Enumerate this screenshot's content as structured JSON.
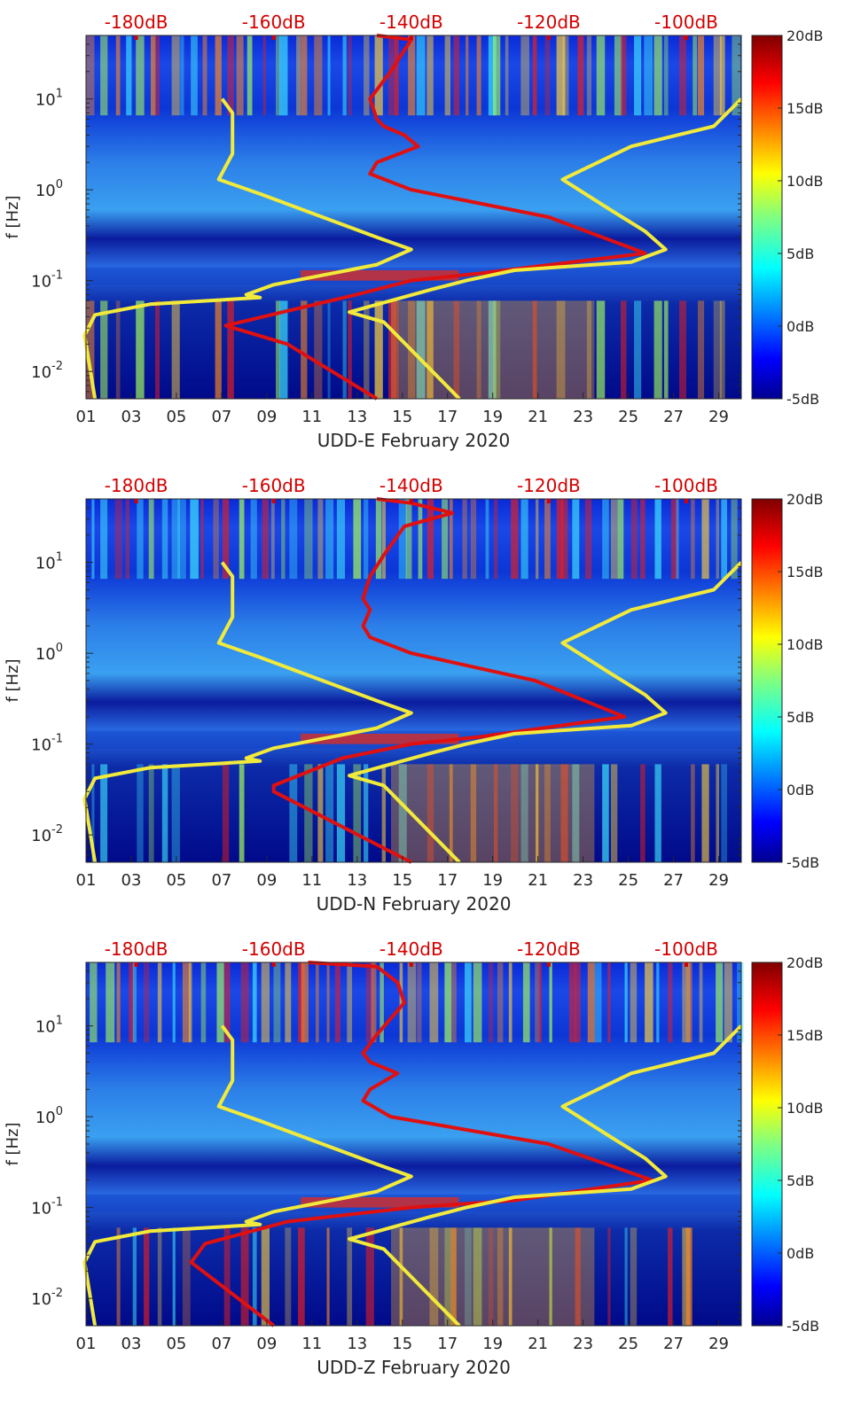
{
  "figure": {
    "description_label": "Spectrogram panels for station UDD, three components"
  },
  "chart_data": [
    {
      "type": "heatmap",
      "title": "UDD-E February 2020",
      "xlabel": "UDD-E February 2020",
      "ylabel": "f [Hz]",
      "x_ticks": [
        "01",
        "03",
        "05",
        "07",
        "09",
        "11",
        "13",
        "15",
        "17",
        "19",
        "21",
        "23",
        "25",
        "27",
        "29"
      ],
      "x_range": [
        1,
        30
      ],
      "y_ticks": [
        {
          "value": 0.01,
          "label": "10",
          "exp": "-2"
        },
        {
          "value": 0.1,
          "label": "10",
          "exp": "-1"
        },
        {
          "value": 1,
          "label": "10",
          "exp": "0"
        },
        {
          "value": 10,
          "label": "10",
          "exp": "1"
        }
      ],
      "y_range": [
        0.005,
        50
      ],
      "y_scale": "log",
      "top_axis_labels": [
        "-180dB",
        "-160dB",
        "-140dB",
        "-120dB",
        "-100dB"
      ],
      "top_axis_values": [
        -180,
        -160,
        -140,
        -120,
        -100
      ],
      "top_axis_range": [
        -187.3,
        -92.0
      ],
      "colorbar": {
        "labels": [
          "20dB",
          "15dB",
          "10dB",
          "5dB",
          "0dB",
          "-5dB"
        ],
        "range": [
          -5,
          20
        ]
      },
      "series": [
        {
          "name": "psd_curve",
          "color": "#e01010",
          "points": [
            [
              -145,
              50
            ],
            [
              -140,
              45
            ],
            [
              -143,
              20
            ],
            [
              -146,
              10
            ],
            [
              -145,
              6
            ],
            [
              -144,
              5
            ],
            [
              -141,
              4
            ],
            [
              -139,
              3
            ],
            [
              -145,
              2
            ],
            [
              -146,
              1.5
            ],
            [
              -140,
              1
            ],
            [
              -120,
              0.5
            ],
            [
              -106,
              0.2
            ],
            [
              -130,
              0.12
            ],
            [
              -140,
              0.1
            ],
            [
              -148,
              0.07
            ],
            [
              -167,
              0.032
            ],
            [
              -158,
              0.02
            ],
            [
              -145,
              0.005
            ]
          ]
        },
        {
          "name": "noise_model_low",
          "color": "#f2ea3a",
          "points": [
            [
              -167.5,
              10
            ],
            [
              -166,
              7
            ],
            [
              -166,
              2.5
            ],
            [
              -168,
              1.3
            ],
            [
              -162,
              0.9
            ],
            [
              -145,
              0.3
            ],
            [
              -140,
              0.22
            ],
            [
              -145,
              0.15
            ],
            [
              -160,
              0.09
            ],
            [
              -164,
              0.07
            ],
            [
              -162,
              0.065
            ],
            [
              -178,
              0.055
            ],
            [
              -186,
              0.042
            ],
            [
              -187.5,
              0.025
            ],
            [
              -186,
              0.005
            ]
          ]
        },
        {
          "name": "noise_model_high",
          "color": "#f2ea3a",
          "points": [
            [
              -92,
              10
            ],
            [
              -96,
              5
            ],
            [
              -108,
              3
            ],
            [
              -118,
              1.3
            ],
            [
              -111,
              0.6
            ],
            [
              -106,
              0.35
            ],
            [
              -103,
              0.22
            ],
            [
              -108,
              0.16
            ],
            [
              -125,
              0.13
            ],
            [
              -132,
              0.1
            ],
            [
              -137,
              0.08
            ],
            [
              -149,
              0.045
            ],
            [
              -144,
              0.035
            ],
            [
              -133,
              0.005
            ]
          ]
        }
      ]
    },
    {
      "type": "heatmap",
      "title": "UDD-N February 2020",
      "xlabel": "UDD-N February 2020",
      "ylabel": "f [Hz]",
      "x_ticks": [
        "01",
        "03",
        "05",
        "07",
        "09",
        "11",
        "13",
        "15",
        "17",
        "19",
        "21",
        "23",
        "25",
        "27",
        "29"
      ],
      "x_range": [
        1,
        30
      ],
      "y_ticks": [
        {
          "value": 0.01,
          "label": "10",
          "exp": "-2"
        },
        {
          "value": 0.1,
          "label": "10",
          "exp": "-1"
        },
        {
          "value": 1,
          "label": "10",
          "exp": "0"
        },
        {
          "value": 10,
          "label": "10",
          "exp": "1"
        }
      ],
      "y_range": [
        0.005,
        50
      ],
      "y_scale": "log",
      "top_axis_labels": [
        "-180dB",
        "-160dB",
        "-140dB",
        "-120dB",
        "-100dB"
      ],
      "top_axis_values": [
        -180,
        -160,
        -140,
        -120,
        -100
      ],
      "top_axis_range": [
        -187.3,
        -92.0
      ],
      "colorbar": {
        "labels": [
          "20dB",
          "15dB",
          "10dB",
          "5dB",
          "0dB",
          "-5dB"
        ],
        "range": [
          -5,
          20
        ]
      },
      "series": [
        {
          "name": "psd_curve",
          "color": "#e01010",
          "points": [
            [
              -145,
              50
            ],
            [
              -140,
              45
            ],
            [
              -134,
              35
            ],
            [
              -141,
              25
            ],
            [
              -144,
              12
            ],
            [
              -146,
              7
            ],
            [
              -147,
              4
            ],
            [
              -146,
              3
            ],
            [
              -147,
              2
            ],
            [
              -146,
              1.5
            ],
            [
              -140,
              1
            ],
            [
              -122,
              0.5
            ],
            [
              -109,
              0.2
            ],
            [
              -130,
              0.12
            ],
            [
              -140,
              0.1
            ],
            [
              -150,
              0.07
            ],
            [
              -160,
              0.035
            ],
            [
              -160,
              0.03
            ],
            [
              -140,
              0.005
            ]
          ]
        },
        {
          "name": "noise_model_low",
          "color": "#f2ea3a",
          "points": [
            [
              -167.5,
              10
            ],
            [
              -166,
              7
            ],
            [
              -166,
              2.5
            ],
            [
              -168,
              1.3
            ],
            [
              -162,
              0.9
            ],
            [
              -145,
              0.3
            ],
            [
              -140,
              0.22
            ],
            [
              -145,
              0.15
            ],
            [
              -160,
              0.09
            ],
            [
              -164,
              0.07
            ],
            [
              -162,
              0.065
            ],
            [
              -178,
              0.055
            ],
            [
              -186,
              0.042
            ],
            [
              -187.5,
              0.025
            ],
            [
              -186,
              0.005
            ]
          ]
        },
        {
          "name": "noise_model_high",
          "color": "#f2ea3a",
          "points": [
            [
              -92,
              10
            ],
            [
              -96,
              5
            ],
            [
              -108,
              3
            ],
            [
              -118,
              1.3
            ],
            [
              -111,
              0.6
            ],
            [
              -106,
              0.35
            ],
            [
              -103,
              0.22
            ],
            [
              -108,
              0.16
            ],
            [
              -125,
              0.13
            ],
            [
              -132,
              0.1
            ],
            [
              -137,
              0.08
            ],
            [
              -149,
              0.045
            ],
            [
              -144,
              0.035
            ],
            [
              -133,
              0.005
            ]
          ]
        }
      ]
    },
    {
      "type": "heatmap",
      "title": "UDD-Z February 2020",
      "xlabel": "UDD-Z February 2020",
      "ylabel": "f [Hz]",
      "x_ticks": [
        "01",
        "03",
        "05",
        "07",
        "09",
        "11",
        "13",
        "15",
        "17",
        "19",
        "21",
        "23",
        "25",
        "27",
        "29"
      ],
      "x_range": [
        1,
        30
      ],
      "y_ticks": [
        {
          "value": 0.01,
          "label": "10",
          "exp": "-2"
        },
        {
          "value": 0.1,
          "label": "10",
          "exp": "-1"
        },
        {
          "value": 1,
          "label": "10",
          "exp": "0"
        },
        {
          "value": 10,
          "label": "10",
          "exp": "1"
        }
      ],
      "y_range": [
        0.005,
        50
      ],
      "y_scale": "log",
      "top_axis_labels": [
        "-180dB",
        "-160dB",
        "-140dB",
        "-120dB",
        "-100dB"
      ],
      "top_axis_values": [
        -180,
        -160,
        -140,
        -120,
        -100
      ],
      "top_axis_range": [
        -187.3,
        -92.0
      ],
      "colorbar": {
        "labels": [
          "20dB",
          "15dB",
          "10dB",
          "5dB",
          "0dB",
          "-5dB"
        ],
        "range": [
          -5,
          20
        ]
      },
      "series": [
        {
          "name": "psd_curve",
          "color": "#e01010",
          "points": [
            [
              -155,
              50
            ],
            [
              -145,
              45
            ],
            [
              -142,
              30
            ],
            [
              -141,
              18
            ],
            [
              -145,
              8
            ],
            [
              -147,
              5
            ],
            [
              -146,
              4
            ],
            [
              -142,
              3
            ],
            [
              -146,
              2
            ],
            [
              -147,
              1.5
            ],
            [
              -143,
              1
            ],
            [
              -120,
              0.5
            ],
            [
              -105,
              0.2
            ],
            [
              -125,
              0.12
            ],
            [
              -140,
              0.1
            ],
            [
              -158,
              0.07
            ],
            [
              -170,
              0.04
            ],
            [
              -172,
              0.025
            ],
            [
              -160,
              0.005
            ]
          ]
        },
        {
          "name": "noise_model_low",
          "color": "#f2ea3a",
          "points": [
            [
              -167.5,
              10
            ],
            [
              -166,
              7
            ],
            [
              -166,
              2.5
            ],
            [
              -168,
              1.3
            ],
            [
              -162,
              0.9
            ],
            [
              -145,
              0.3
            ],
            [
              -140,
              0.22
            ],
            [
              -145,
              0.15
            ],
            [
              -160,
              0.09
            ],
            [
              -164,
              0.07
            ],
            [
              -162,
              0.065
            ],
            [
              -178,
              0.055
            ],
            [
              -186,
              0.042
            ],
            [
              -187.5,
              0.025
            ],
            [
              -186,
              0.005
            ]
          ]
        },
        {
          "name": "noise_model_high",
          "color": "#f2ea3a",
          "points": [
            [
              -92,
              10
            ],
            [
              -96,
              5
            ],
            [
              -108,
              3
            ],
            [
              -118,
              1.3
            ],
            [
              -111,
              0.6
            ],
            [
              -106,
              0.35
            ],
            [
              -103,
              0.22
            ],
            [
              -108,
              0.16
            ],
            [
              -125,
              0.13
            ],
            [
              -132,
              0.1
            ],
            [
              -137,
              0.08
            ],
            [
              -149,
              0.045
            ],
            [
              -144,
              0.035
            ],
            [
              -133,
              0.005
            ]
          ]
        }
      ]
    }
  ]
}
